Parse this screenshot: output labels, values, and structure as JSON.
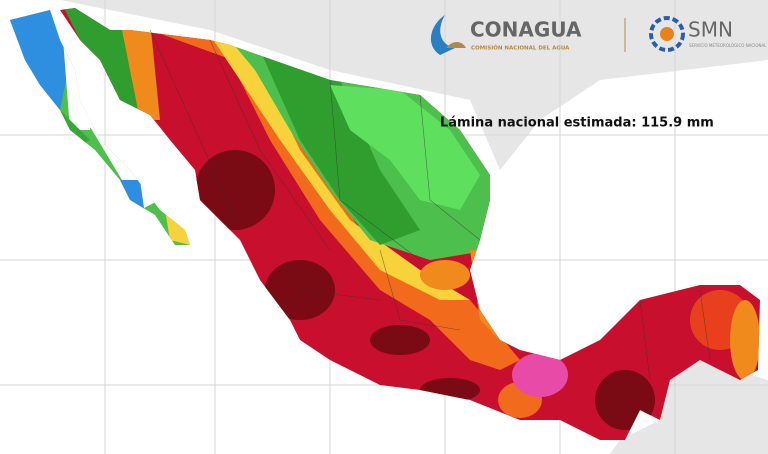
{
  "header": {
    "conagua": "CONAGUA",
    "conagua_sub": "COMISIÓN NACIONAL DEL AGUA",
    "smn": "SMN",
    "smn_sub": "SERVICIO METEOROLÓGICO NACIONAL"
  },
  "annotation": "Lámina nacional estimada: 115.9 mm"
}
